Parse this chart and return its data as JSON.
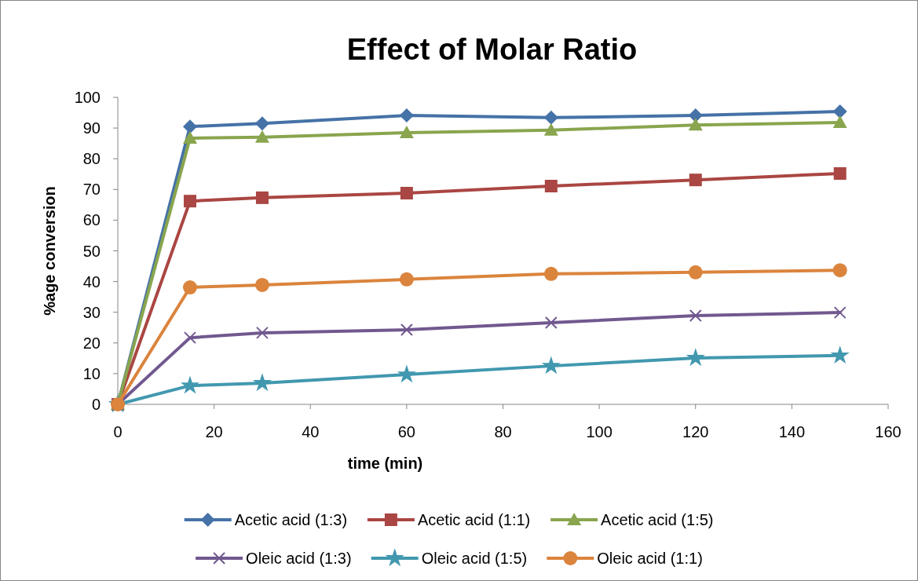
{
  "chart_data": {
    "type": "line",
    "title": "Effect of Molar Ratio",
    "xlabel": "time (min)",
    "ylabel": "%age conversion",
    "x": [
      0,
      15,
      30,
      60,
      90,
      120,
      150
    ],
    "xlim": [
      0,
      160
    ],
    "xticks": [
      0,
      20,
      40,
      60,
      80,
      100,
      120,
      140,
      160
    ],
    "ylim": [
      0,
      100
    ],
    "yticks": [
      0,
      10,
      20,
      30,
      40,
      50,
      60,
      70,
      80,
      90,
      100
    ],
    "grid": false,
    "legend": "bottom",
    "line_style": "solid",
    "series": [
      {
        "name": "Acetic acid (1:3)",
        "color": "#4572a7",
        "marker": "diamond",
        "values": [
          0,
          90.5,
          91.5,
          94.1,
          93.4,
          94.1,
          95.4
        ]
      },
      {
        "name": "Acetic acid (1:1)",
        "color": "#aa4643",
        "marker": "square",
        "values": [
          0,
          66.2,
          67.3,
          68.8,
          71.1,
          73.1,
          75.2
        ]
      },
      {
        "name": "Acetic acid (1:5)",
        "color": "#89a54e",
        "marker": "triangle",
        "values": [
          0,
          86.7,
          87.0,
          88.5,
          89.3,
          91.0,
          91.8
        ]
      },
      {
        "name": "Oleic acid (1:3)",
        "color": "#71588f",
        "marker": "cross",
        "values": [
          0,
          21.7,
          23.3,
          24.3,
          26.6,
          28.9,
          29.9
        ]
      },
      {
        "name": "Oleic acid (1:5)",
        "color": "#4198af",
        "marker": "star",
        "values": [
          0,
          6.1,
          6.9,
          9.7,
          12.5,
          15.1,
          15.9
        ]
      },
      {
        "name": "Oleic acid (1:1)",
        "color": "#db843d",
        "marker": "circle",
        "values": [
          0,
          38.1,
          38.9,
          40.7,
          42.5,
          43.0,
          43.7
        ]
      }
    ]
  }
}
